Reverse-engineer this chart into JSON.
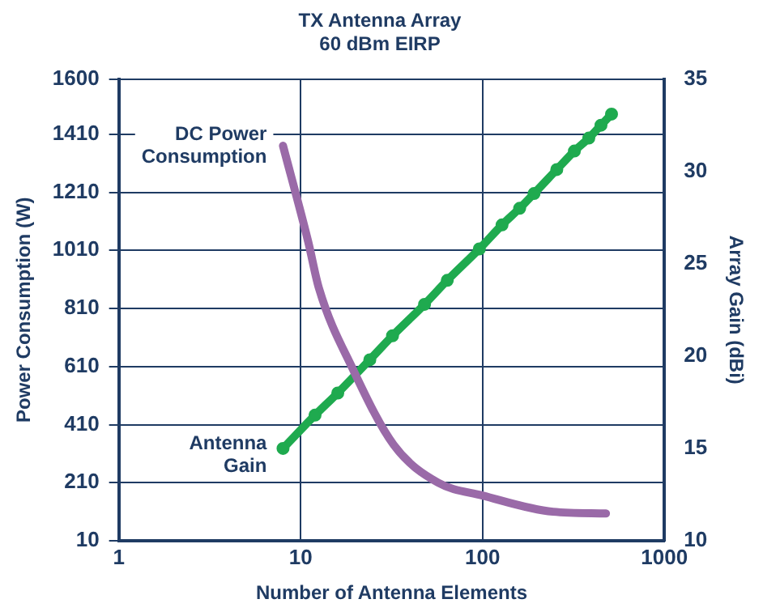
{
  "chart_data": {
    "type": "line",
    "title": "TX Antenna Array",
    "subtitle": "60 dBm EIRP",
    "xlabel": "Number of Antenna Elements",
    "ylabel": "Power Consumption (W)",
    "y2label": "Array Gain (dBi)",
    "log": "x",
    "xlim": [
      1,
      1000
    ],
    "xticks": [
      1,
      10,
      100,
      1000
    ],
    "ylim": [
      10,
      1600
    ],
    "yticks": [
      10,
      210,
      410,
      610,
      810,
      1010,
      1210,
      1410,
      1600
    ],
    "y2lim": [
      10,
      35
    ],
    "y2ticks": [
      10,
      15,
      20,
      25,
      30,
      35
    ],
    "grid": true,
    "legend": false,
    "line_style": "solid",
    "series": [
      {
        "name": "DC Power Consumption",
        "color": "#9a6aa8",
        "marker": "none",
        "x": [
          8,
          11,
          12.6,
          19.4,
          32.5,
          57,
          100,
          244,
          477
        ],
        "values": [
          1370,
          1040,
          880,
          600,
          340,
          210,
          166,
          110,
          104
        ]
      },
      {
        "name": "Antenna Gain",
        "color": "#1faa4f",
        "marker": "circle",
        "axis": "y2",
        "x": [
          8,
          12,
          16,
          24,
          32,
          48,
          64,
          96,
          128,
          160,
          192,
          256,
          320,
          384,
          448,
          512
        ],
        "values": [
          15.0,
          16.8,
          18.0,
          19.8,
          21.1,
          22.8,
          24.1,
          25.8,
          27.1,
          28.0,
          28.8,
          30.1,
          31.1,
          31.8,
          32.5,
          33.1
        ]
      }
    ]
  }
}
